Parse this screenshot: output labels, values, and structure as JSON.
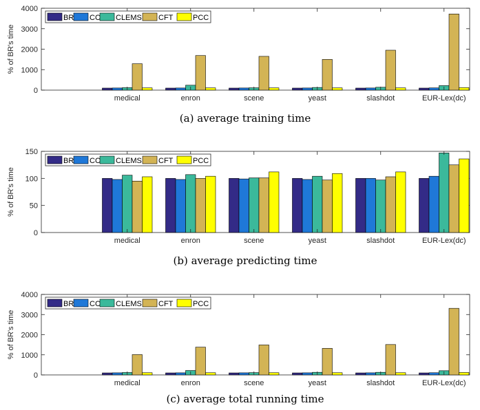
{
  "colors": {
    "BR": "#332b87",
    "CC": "#1f78d8",
    "CLEMS": "#3bb99b",
    "CFT": "#d3b455",
    "PCC": "#ffff00"
  },
  "chart_data": [
    {
      "type": "bar",
      "caption": "(a) average training time",
      "ylabel": "% of BR's time",
      "ylim": [
        0,
        4000
      ],
      "yticks": [
        0,
        1000,
        2000,
        3000,
        4000
      ],
      "categories": [
        "medical",
        "enron",
        "scene",
        "yeast",
        "slashdot",
        "EUR-Lex(dc)"
      ],
      "legend_position": "top-left",
      "series": [
        {
          "name": "BR",
          "values": [
            100,
            100,
            100,
            100,
            100,
            100
          ]
        },
        {
          "name": "CC",
          "values": [
            105,
            105,
            105,
            105,
            105,
            110
          ]
        },
        {
          "name": "CLEMS",
          "values": [
            120,
            240,
            115,
            130,
            140,
            220
          ]
        },
        {
          "name": "CFT",
          "values": [
            1290,
            1690,
            1650,
            1500,
            1950,
            3720
          ]
        },
        {
          "name": "PCC",
          "values": [
            110,
            110,
            110,
            110,
            110,
            120
          ]
        }
      ]
    },
    {
      "type": "bar",
      "caption": "(b) average predicting time",
      "ylabel": "% of BR's time",
      "ylim": [
        0,
        150
      ],
      "yticks": [
        0,
        50,
        100,
        150
      ],
      "categories": [
        "medical",
        "enron",
        "scene",
        "yeast",
        "slashdot",
        "EUR-Lex(dc)"
      ],
      "legend_position": "top-left",
      "series": [
        {
          "name": "BR",
          "values": [
            100,
            100,
            100,
            100,
            100,
            100
          ]
        },
        {
          "name": "CC",
          "values": [
            98,
            98,
            99,
            98,
            100,
            104
          ]
        },
        {
          "name": "CLEMS",
          "values": [
            106,
            107,
            101,
            104,
            97,
            147
          ]
        },
        {
          "name": "CFT",
          "values": [
            95,
            100,
            101,
            97,
            103,
            125
          ]
        },
        {
          "name": "PCC",
          "values": [
            103,
            104,
            112,
            109,
            112,
            136
          ]
        }
      ]
    },
    {
      "type": "bar",
      "caption": "(c) average total running time",
      "ylabel": "% of BR's time",
      "ylim": [
        0,
        4000
      ],
      "yticks": [
        0,
        1000,
        2000,
        3000,
        4000
      ],
      "categories": [
        "medical",
        "enron",
        "scene",
        "yeast",
        "slashdot",
        "EUR-Lex(dc)"
      ],
      "legend_position": "top-left",
      "series": [
        {
          "name": "BR",
          "values": [
            100,
            100,
            100,
            100,
            100,
            100
          ]
        },
        {
          "name": "CC",
          "values": [
            105,
            105,
            105,
            105,
            105,
            110
          ]
        },
        {
          "name": "CLEMS",
          "values": [
            120,
            220,
            115,
            130,
            130,
            210
          ]
        },
        {
          "name": "CFT",
          "values": [
            1010,
            1380,
            1490,
            1320,
            1510,
            3310
          ]
        },
        {
          "name": "PCC",
          "values": [
            110,
            110,
            110,
            110,
            110,
            120
          ]
        }
      ]
    }
  ]
}
